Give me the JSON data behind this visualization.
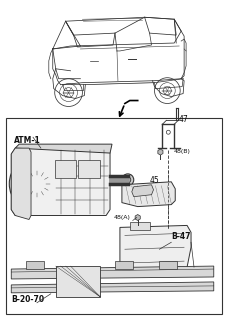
{
  "bg_color": "#ffffff",
  "labels": {
    "ATM1": "ATM-1",
    "part47": "47",
    "part48B": "48(B)",
    "part45": "45",
    "part48A": "48(A)",
    "partB47": "B-47",
    "partB2070": "B-20-70"
  },
  "line_color": "#333333",
  "text_color": "#111111",
  "gray_fill": "#e8e8e8",
  "dark_fill": "#cccccc",
  "white_fill": "#ffffff"
}
